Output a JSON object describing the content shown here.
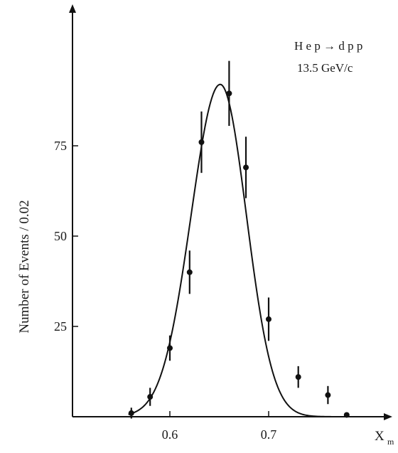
{
  "chart_data": {
    "type": "scatter",
    "title": "",
    "xlabel": "X",
    "xlabel_subscript": "m",
    "ylabel": "Number of Events / 0.02",
    "xlim": [
      0.515,
      0.83
    ],
    "ylim": [
      0,
      110
    ],
    "xticks": [
      {
        "value": 0.6,
        "label": "0.6"
      },
      {
        "value": 0.7,
        "label": "0.7"
      }
    ],
    "yticks": [
      {
        "value": 25,
        "label": "25"
      },
      {
        "value": 50,
        "label": "50"
      },
      {
        "value": 75,
        "label": "75"
      }
    ],
    "grid": false,
    "annotations": [
      {
        "text": "H e p → d p p",
        "x": 0.77,
        "y": 101
      },
      {
        "text": "13.5 GeV/c",
        "x": 0.77,
        "y": 97
      }
    ],
    "series": [
      {
        "kind": "data_points",
        "points": [
          {
            "x": 0.561,
            "y": 1,
            "err": 1.5
          },
          {
            "x": 0.58,
            "y": 5.5,
            "err": 2.5
          },
          {
            "x": 0.6,
            "y": 19,
            "err": 3.5
          },
          {
            "x": 0.62,
            "y": 40,
            "err": 6
          },
          {
            "x": 0.632,
            "y": 76,
            "err": 8.5
          },
          {
            "x": 0.66,
            "y": 89.5,
            "err": 9
          },
          {
            "x": 0.677,
            "y": 69,
            "err": 8.5
          },
          {
            "x": 0.7,
            "y": 27,
            "err": 6
          },
          {
            "x": 0.73,
            "y": 11,
            "err": 3
          },
          {
            "x": 0.76,
            "y": 6,
            "err": 2.5
          },
          {
            "x": 0.779,
            "y": 0.5,
            "err": 0
          }
        ]
      },
      {
        "kind": "fit_curve",
        "peak_x": 0.651,
        "peak_y": 92,
        "sigma_left": 0.0295,
        "sigma_right": 0.0265,
        "x_range": [
          0.558,
          0.776
        ]
      }
    ]
  }
}
